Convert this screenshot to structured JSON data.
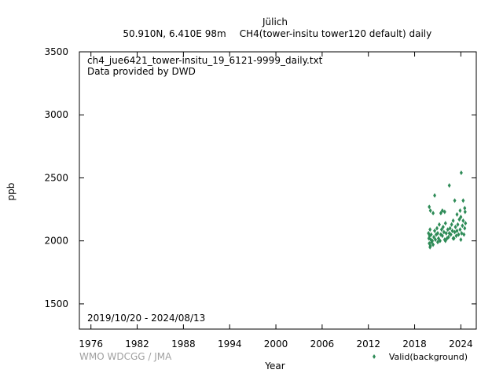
{
  "header": {
    "station": "Jülich",
    "location": "50.910N, 6.410E 98m",
    "species": "CH4(tower-insitu tower120 default) daily"
  },
  "plot": {
    "filename": "ch4_jue6421_tower-insitu_19_6121-9999_daily.txt",
    "provider": "Data provided by DWD",
    "date_range": "2019/10/20 - 2024/08/13",
    "credit": "WMO WDCGG / JMA"
  },
  "chart_data": {
    "type": "scatter",
    "xlabel": "Year",
    "ylabel": "ppb",
    "xlim": [
      1974.5,
      2026
    ],
    "ylim": [
      1300,
      3500
    ],
    "x_ticks": [
      1976,
      1982,
      1988,
      1994,
      2000,
      2006,
      2012,
      2018,
      2024
    ],
    "x_tick_labels": [
      "1976",
      "1982",
      "1988",
      "1994",
      "2000",
      "2006",
      "2012",
      "2018",
      "2024"
    ],
    "y_ticks": [
      1500,
      2000,
      2500,
      3000,
      3500
    ],
    "y_tick_labels": [
      "1500",
      "2000",
      "2500",
      "3000",
      "3500"
    ],
    "legend_position": "bottom-right",
    "series": [
      {
        "name": "Valid(background)",
        "color": "#2e8b57",
        "marker": "diamond",
        "x": [
          2019.8,
          2019.85,
          2019.9,
          2019.95,
          2020.0,
          2020.05,
          2020.1,
          2020.15,
          2020.2,
          2020.3,
          2020.4,
          2020.5,
          2020.6,
          2020.7,
          2020.8,
          2020.9,
          2021.0,
          2021.1,
          2021.2,
          2021.3,
          2021.4,
          2021.5,
          2021.6,
          2021.7,
          2021.8,
          2021.9,
          2022.0,
          2022.1,
          2022.2,
          2022.3,
          2022.4,
          2022.5,
          2022.6,
          2022.7,
          2022.8,
          2022.9,
          2023.0,
          2023.1,
          2023.2,
          2023.3,
          2023.4,
          2023.5,
          2023.6,
          2023.7,
          2023.8,
          2023.9,
          2024.0,
          2024.1,
          2024.2,
          2024.3,
          2024.4,
          2024.5,
          2024.6,
          2019.9,
          2020.05,
          2020.6,
          2021.4,
          2021.6,
          2022.5,
          2023.2,
          2023.9,
          2024.05,
          2024.3,
          2024.5,
          2020.0,
          2021.0,
          2022.0,
          2023.0,
          2024.0,
          2020.4,
          2021.9,
          2023.5,
          2024.55
        ],
        "y": [
          2060,
          2020,
          1980,
          2040,
          2090,
          1960,
          2010,
          2050,
          1990,
          2000,
          1970,
          2030,
          2080,
          2010,
          2050,
          2100,
          2060,
          2020,
          2130,
          2000,
          2050,
          2090,
          2040,
          2110,
          2070,
          2010,
          2140,
          2060,
          2020,
          2090,
          2030,
          2060,
          2100,
          2050,
          2130,
          2080,
          2160,
          2020,
          2070,
          2110,
          2040,
          2080,
          2130,
          2050,
          2170,
          2090,
          2190,
          2060,
          2120,
          2160,
          2050,
          2100,
          2140,
          2270,
          2240,
          2360,
          2220,
          2240,
          2440,
          2320,
          2240,
          2540,
          2320,
          2260,
          1950,
          1990,
          2000,
          2020,
          2010,
          2220,
          2230,
          2210,
          2230
        ]
      }
    ]
  }
}
